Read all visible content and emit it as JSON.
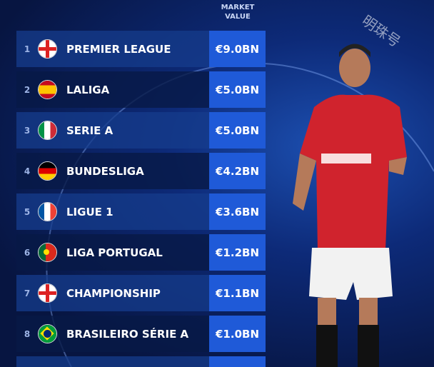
{
  "header": {
    "market_value_label_line1": "MARKET",
    "market_value_label_line2": "VALUE"
  },
  "watermark": "明珠号",
  "leagues": [
    {
      "rank": "1",
      "name": "PREMIER LEAGUE",
      "value": "€9.0BN",
      "flag": "england"
    },
    {
      "rank": "2",
      "name": "LALIGA",
      "value": "€5.0BN",
      "flag": "spain"
    },
    {
      "rank": "3",
      "name": "SERIE A",
      "value": "€5.0BN",
      "flag": "italy"
    },
    {
      "rank": "4",
      "name": "BUNDESLIGA",
      "value": "€4.2BN",
      "flag": "germany"
    },
    {
      "rank": "5",
      "name": "LIGUE 1",
      "value": "€3.6BN",
      "flag": "france"
    },
    {
      "rank": "6",
      "name": "LIGA PORTUGAL",
      "value": "€1.2BN",
      "flag": "portugal"
    },
    {
      "rank": "7",
      "name": "CHAMPIONSHIP",
      "value": "€1.1BN",
      "flag": "england"
    },
    {
      "rank": "8",
      "name": "BRASILEIRO SÉRIE A",
      "value": "€1.0BN",
      "flag": "brazil"
    }
  ],
  "colors": {
    "value_box": "#1f5ad8",
    "background": "#081848",
    "shirt": "#d0232d"
  }
}
